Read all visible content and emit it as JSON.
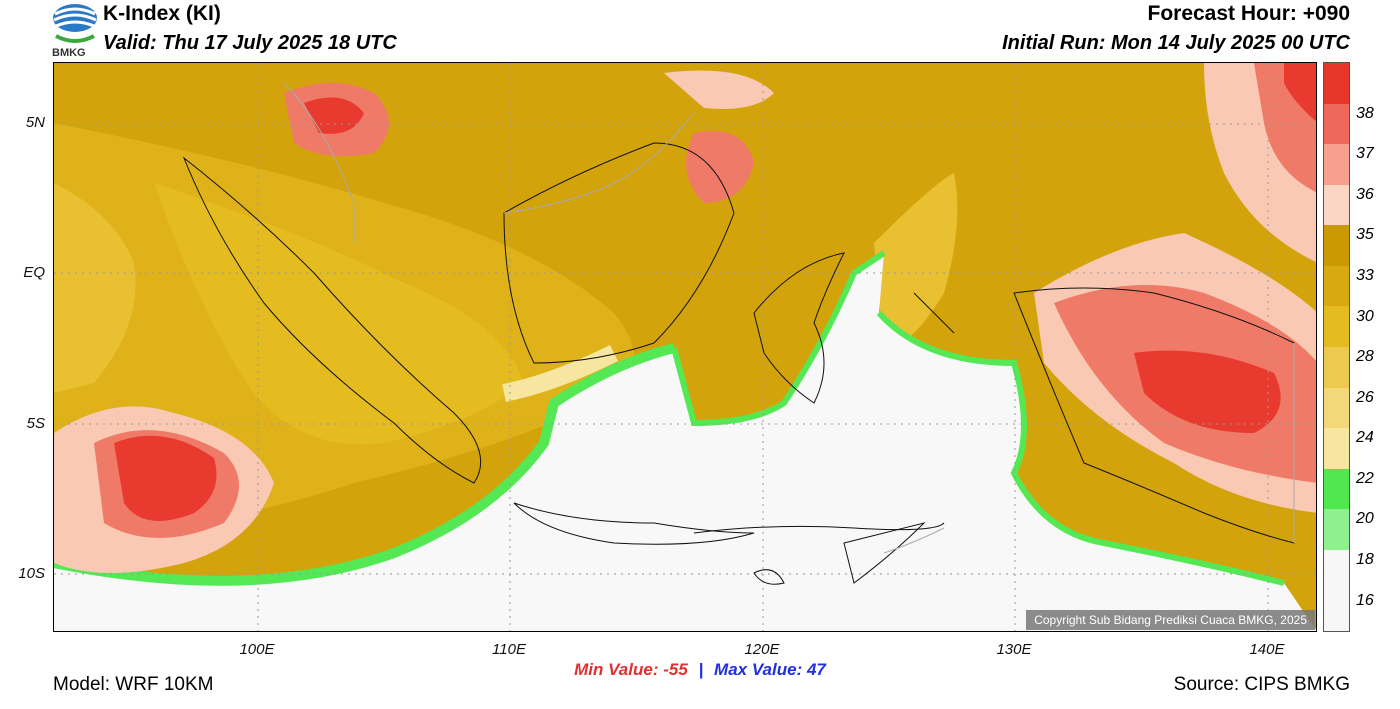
{
  "header": {
    "title": "K-Index (KI)",
    "valid": "Valid: Thu 17 July 2025 18 UTC",
    "forecast_hour": "Forecast Hour: +090",
    "initial_run": "Initial Run: Mon 14 July 2025 00 UTC",
    "logo_text": "BMKG"
  },
  "axes": {
    "lat_labels": [
      "5N",
      "EQ",
      "5S",
      "10S"
    ],
    "lon_labels": [
      "100E",
      "110E",
      "120E",
      "130E",
      "140E"
    ]
  },
  "stats": {
    "min_label": "Min Value:",
    "min_value": "-55",
    "max_label": "Max Value:",
    "max_value": "47"
  },
  "footer": {
    "model": "Model: WRF 10KM",
    "source": "Source: CIPS BMKG",
    "copyright": "Copyright Sub Bidang Prediksi Cuaca BMKG, 2025"
  },
  "colorbar": {
    "levels": [
      "38",
      "37",
      "36",
      "35",
      "33",
      "30",
      "28",
      "26",
      "24",
      "22",
      "20",
      "18",
      "16"
    ],
    "colors": [
      "#e8362a",
      "#f0685a",
      "#f7a090",
      "#fcd6c4",
      "#cc9a00",
      "#d8aa10",
      "#e4bc20",
      "#ecca50",
      "#f2d878",
      "#f7e6a0",
      "#4fe84f",
      "#8ef08e",
      "#f7f7f7"
    ]
  },
  "field_colors": {
    "land_low": "#f8f8f8",
    "green": "#55e855",
    "yellow": "#e8c032",
    "gold": "#d3a30c",
    "dark_gold": "#c8960a",
    "pink": "#f9c9b4",
    "salmon": "#f07a68",
    "red": "#e83a2e"
  }
}
